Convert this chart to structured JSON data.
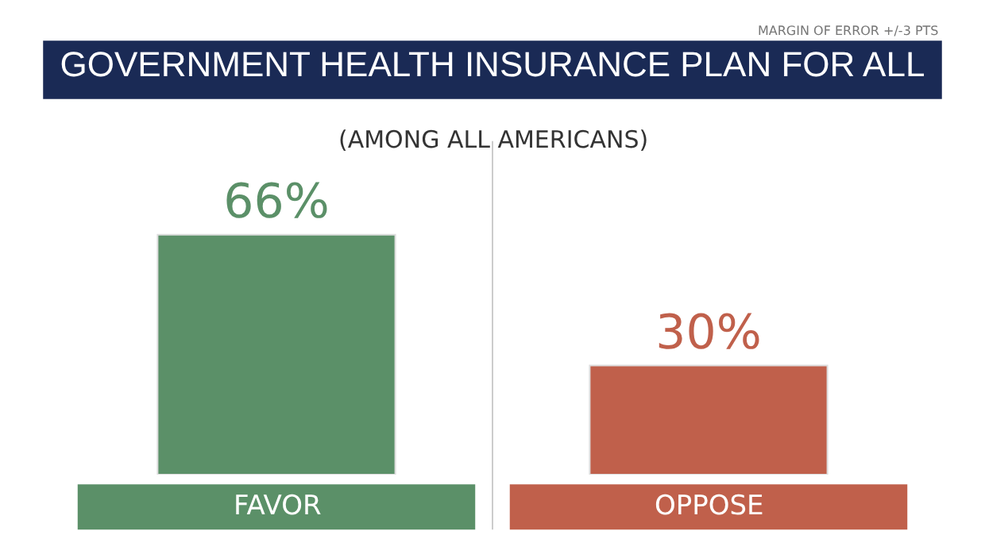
{
  "chart_data": {
    "type": "bar",
    "title": "GOVERNMENT HEALTH INSURANCE PLAN FOR ALL",
    "subtitle": "(AMONG ALL AMERICANS)",
    "annotations": [
      "MARGIN OF ERROR +/-3 PTS"
    ],
    "categories": [
      "FAVOR",
      "OPPOSE"
    ],
    "values": [
      66,
      30
    ],
    "colors": [
      "#5b9068",
      "#c0604b"
    ],
    "value_labels": [
      "66%",
      "30%"
    ],
    "grid": false,
    "legend": false
  }
}
